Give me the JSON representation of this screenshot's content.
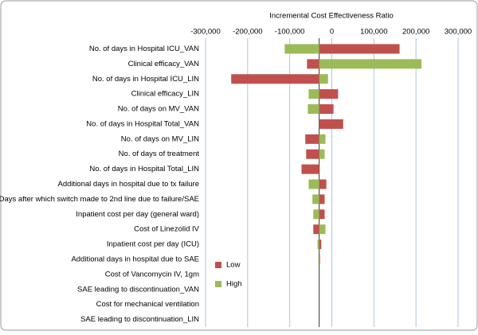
{
  "chart_data": {
    "type": "tornado",
    "title": "Incremental Cost Effectiveness Ratio",
    "categories": [
      "No. of days in Hospital ICU_VAN",
      "Clinical efficacy_VAN",
      "No. of days in Hospital ICU_LIN",
      "Clinical efficacy_LIN",
      "No. of days on MV_VAN",
      "No. of days in Hospital Total_VAN",
      "No. of days on MV_LIN",
      "No. of days of treatment",
      "No. of days in Hospital Total_LIN",
      "Additional days in hospital due to tx failure",
      "Days after which switch made to 2nd line due to failure/SAE",
      "Inpatient cost per day (general ward)",
      "Cost of Linezolid IV",
      "Inpatient cost per day (ICU)",
      "Additional days in hospital due to SAE",
      "Cost of Vancomycin IV, 1gm",
      "SAE leading to discontinuation_VAN",
      "Cost for mechanical ventilation",
      "SAE leading to discontinuation_LIN"
    ],
    "base_value": -30000,
    "series": [
      {
        "name": "Low",
        "color": "#c0504d",
        "values": [
          161000,
          -59000,
          -239000,
          15000,
          4000,
          27000,
          -63000,
          -61000,
          -72000,
          -13000,
          -17000,
          -17000,
          -44000,
          -25000,
          -28000,
          -30000,
          -30000,
          -30000,
          -30000
        ]
      },
      {
        "name": "High",
        "color": "#9bbb59",
        "values": [
          -112000,
          213000,
          -9000,
          -55000,
          -57000,
          -30000,
          -15000,
          -17000,
          -30000,
          -55000,
          -46000,
          -44000,
          -15000,
          -34000,
          -32000,
          -30000,
          -30000,
          -30000,
          -30000
        ]
      }
    ],
    "xlim": [
      -300000,
      300000
    ],
    "xticks": [
      {
        "value": -300000,
        "label": "-300,000"
      },
      {
        "value": -200000,
        "label": "-200,000"
      },
      {
        "value": -100000,
        "label": "-100,000"
      },
      0,
      {
        "value": 100000,
        "label": "100,000"
      },
      {
        "value": 200000,
        "label": "200,000"
      },
      {
        "value": 300000,
        "label": "300,000"
      }
    ],
    "grid": true
  }
}
